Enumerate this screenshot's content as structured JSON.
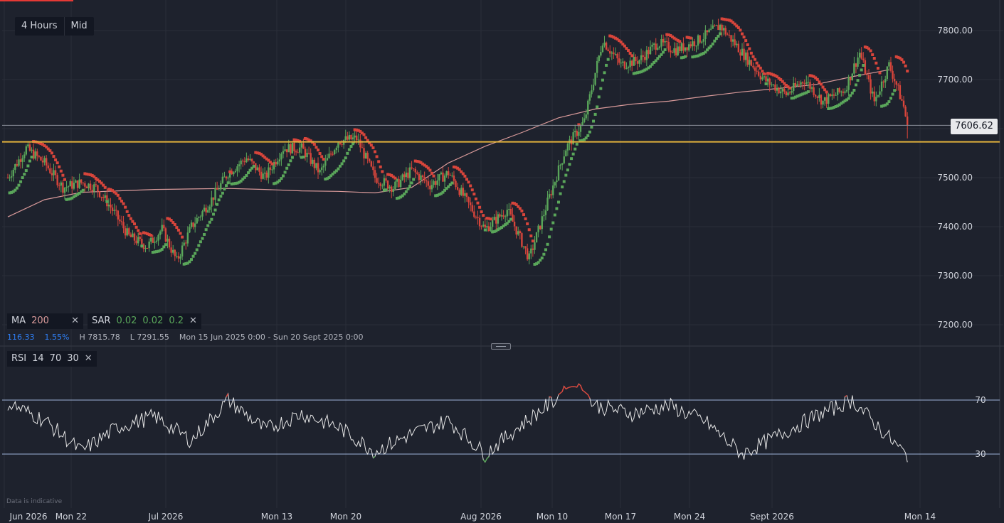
{
  "toolbar": {
    "timeframe": "4 Hours",
    "price_type": "Mid"
  },
  "indicators": {
    "ma": {
      "name": "MA",
      "period": "200",
      "color": "#d99a9a"
    },
    "sar": {
      "name": "SAR",
      "p1": "0.02",
      "p2": "0.02",
      "p3": "0.2",
      "color": "#5aa65a"
    },
    "rsi": {
      "name": "RSI",
      "period": "14",
      "upper": "70",
      "lower": "30"
    }
  },
  "stats": {
    "change": "116.33",
    "change_pct": "1.55%",
    "high": "H 7815.78",
    "low": "L 7291.55",
    "range": "Mon 15 Jun 2025 0:00 - Sun 20 Sept 2025 0:00"
  },
  "current_price": "7606.62",
  "disclaimer": "Data is indicative",
  "colors": {
    "up": "#5aa65a",
    "down": "#d8453b",
    "support": "#e2b13c",
    "background": "#1e222d",
    "rsi_line": "#e6e6e6"
  },
  "chart_data": {
    "type": "candlestick",
    "y_axis": {
      "ticks": [
        "7800.00",
        "7700.00",
        "7500.00",
        "7400.00",
        "7300.00",
        "7200.00"
      ],
      "ylim": [
        7170,
        7835
      ]
    },
    "x_axis": {
      "labels": [
        "Jun 2026",
        "Mon 22",
        "Jul 2026",
        "Mon 13",
        "Mon 20",
        "Aug 2026",
        "Mon 10",
        "Mon 17",
        "Mon 24",
        "Sept 2026",
        "Mon 14"
      ]
    },
    "support_level": 7573,
    "last_price": 7606.62,
    "ma_200": {
      "x": [
        0,
        10,
        20,
        30,
        40,
        50,
        60,
        70,
        80,
        90,
        100,
        110,
        120,
        130,
        140,
        150,
        160,
        170,
        180,
        190,
        200,
        210,
        220,
        230,
        240
      ],
      "y": [
        7420,
        7455,
        7470,
        7473,
        7476,
        7477,
        7478,
        7476,
        7473,
        7472,
        7469,
        7480,
        7530,
        7564,
        7592,
        7622,
        7640,
        7650,
        7656,
        7666,
        7675,
        7682,
        7690,
        7706,
        7720
      ]
    },
    "price_path": {
      "x": [
        0,
        5,
        10,
        15,
        20,
        24,
        28,
        33,
        38,
        42,
        46,
        50,
        55,
        60,
        65,
        70,
        75,
        80,
        85,
        90,
        95,
        100,
        105,
        110,
        115,
        120,
        126,
        130,
        136,
        142,
        147,
        152,
        157,
        162,
        167,
        172,
        177,
        182,
        188,
        194,
        200,
        206,
        212,
        217,
        222,
        228,
        232,
        236,
        240,
        242,
        244,
        245
      ],
      "close": [
        7500,
        7560,
        7530,
        7480,
        7490,
        7480,
        7440,
        7380,
        7360,
        7395,
        7330,
        7400,
        7450,
        7510,
        7540,
        7500,
        7560,
        7560,
        7510,
        7575,
        7580,
        7500,
        7480,
        7515,
        7485,
        7510,
        7440,
        7395,
        7435,
        7335,
        7450,
        7560,
        7615,
        7780,
        7730,
        7740,
        7775,
        7760,
        7780,
        7810,
        7755,
        7700,
        7670,
        7700,
        7655,
        7680,
        7755,
        7655,
        7730,
        7690,
        7645,
        7606.62
      ]
    },
    "rsi": {
      "x": [
        0,
        10,
        20,
        30,
        40,
        50,
        60,
        70,
        80,
        90,
        100,
        110,
        120,
        130,
        140,
        150,
        155,
        160,
        170,
        180,
        190,
        200,
        210,
        220,
        230,
        240,
        245
      ],
      "y": [
        68,
        55,
        32,
        50,
        58,
        40,
        70,
        48,
        60,
        50,
        32,
        45,
        55,
        30,
        52,
        72,
        80,
        66,
        60,
        66,
        54,
        30,
        44,
        58,
        70,
        42,
        28
      ],
      "levels": [
        70,
        30
      ]
    }
  }
}
